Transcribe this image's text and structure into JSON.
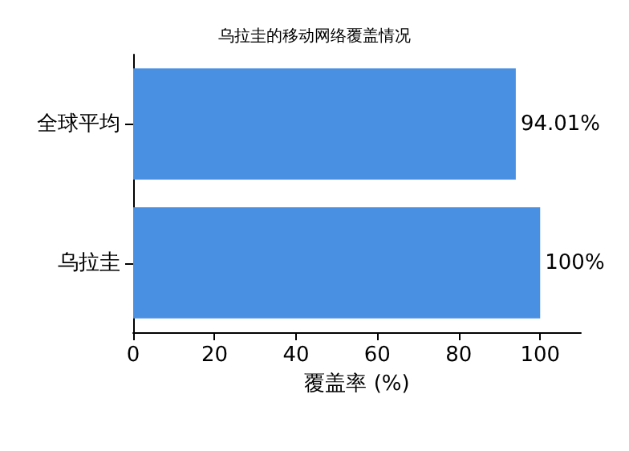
{
  "chart_data": {
    "type": "bar",
    "orientation": "horizontal",
    "title": "乌拉圭的移动网络覆盖情况",
    "xlabel": "覆盖率 (%)",
    "categories": [
      "全球平均",
      "乌拉圭"
    ],
    "values": [
      94.01,
      100
    ],
    "color": "#4a90e2",
    "value_labels": [
      "94.01%",
      "100%"
    ],
    "xlim": [
      0,
      110
    ],
    "xticks": [
      0,
      20,
      40,
      60,
      80,
      100
    ],
    "grid": false
  }
}
